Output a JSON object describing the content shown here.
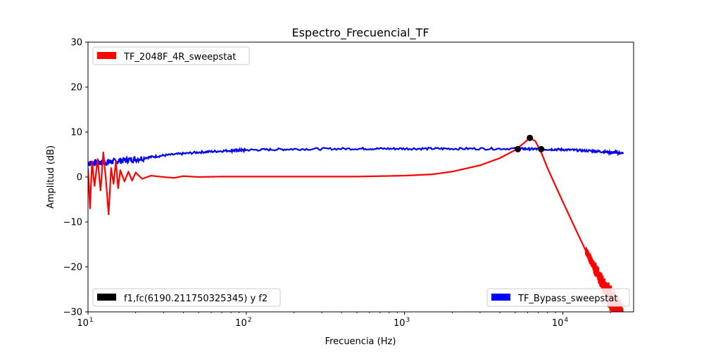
{
  "chart_data": {
    "type": "line",
    "title": "Espectro_Frecuencial_TF",
    "xlabel": "Frecuencia (Hz)",
    "ylabel": "Amplitud (dB)",
    "xscale": "log",
    "xlim": [
      10,
      28000
    ],
    "ylim": [
      -30,
      30
    ],
    "x_ticks": [
      {
        "value": 10,
        "base": "10",
        "exp": "1"
      },
      {
        "value": 100,
        "base": "10",
        "exp": "2"
      },
      {
        "value": 1000,
        "base": "10",
        "exp": "3"
      },
      {
        "value": 10000,
        "base": "10",
        "exp": "4"
      }
    ],
    "y_ticks": [
      {
        "value": -30,
        "label": "−30"
      },
      {
        "value": -20,
        "label": "−20"
      },
      {
        "value": -10,
        "label": "−10"
      },
      {
        "value": 0,
        "label": "0"
      },
      {
        "value": 10,
        "label": "10"
      },
      {
        "value": 20,
        "label": "20"
      },
      {
        "value": 30,
        "label": "30"
      }
    ],
    "grid": false,
    "series": [
      {
        "name": "TF_Bypass_sweepstat",
        "color": "#0000ff",
        "legend_position": "lower-right",
        "points": [
          [
            10,
            3.0
          ],
          [
            12,
            3.2
          ],
          [
            15,
            3.5
          ],
          [
            20,
            4.0
          ],
          [
            30,
            4.8
          ],
          [
            50,
            5.5
          ],
          [
            80,
            5.9
          ],
          [
            100,
            6.0
          ],
          [
            200,
            6.2
          ],
          [
            500,
            6.3
          ],
          [
            1000,
            6.3
          ],
          [
            2000,
            6.3
          ],
          [
            5000,
            6.3
          ],
          [
            7000,
            6.2
          ],
          [
            10000,
            6.1
          ],
          [
            15000,
            5.8
          ],
          [
            20000,
            5.5
          ],
          [
            24000,
            5.3
          ]
        ]
      },
      {
        "name": "TF_2048F_4R_sweepstat",
        "color": "#ff0000",
        "legend_position": "upper-left",
        "points": [
          [
            10,
            2.0
          ],
          [
            10.3,
            -7.0
          ],
          [
            10.6,
            3.5
          ],
          [
            11,
            -2.0
          ],
          [
            11.5,
            4.0
          ],
          [
            12,
            -3.0
          ],
          [
            12.5,
            5.5
          ],
          [
            13,
            -1.0
          ],
          [
            13.5,
            -8.3
          ],
          [
            14,
            2.0
          ],
          [
            14.5,
            -1.5
          ],
          [
            15,
            3.5
          ],
          [
            15.5,
            -2.5
          ],
          [
            16,
            1.5
          ],
          [
            17,
            -1.0
          ],
          [
            18,
            1.2
          ],
          [
            19,
            -0.8
          ],
          [
            20,
            1.0
          ],
          [
            22,
            -0.4
          ],
          [
            25,
            0.3
          ],
          [
            30,
            0.0
          ],
          [
            35,
            -0.2
          ],
          [
            40,
            0.2
          ],
          [
            50,
            0.0
          ],
          [
            70,
            0.1
          ],
          [
            100,
            0.1
          ],
          [
            200,
            0.1
          ],
          [
            500,
            0.1
          ],
          [
            1000,
            0.3
          ],
          [
            1500,
            0.6
          ],
          [
            2000,
            1.2
          ],
          [
            3000,
            2.6
          ],
          [
            4000,
            4.2
          ],
          [
            5000,
            6.0
          ],
          [
            5700,
            7.6
          ],
          [
            6190,
            8.7
          ],
          [
            6700,
            8.0
          ],
          [
            7300,
            5.5
          ],
          [
            8000,
            2.0
          ],
          [
            9000,
            -2.0
          ],
          [
            10000,
            -5.5
          ],
          [
            12000,
            -11.5
          ],
          [
            14000,
            -16.5
          ],
          [
            16000,
            -20.5
          ],
          [
            18000,
            -24.0
          ],
          [
            20000,
            -27.0
          ],
          [
            22000,
            -29.5
          ],
          [
            24000,
            -32.0
          ]
        ],
        "noise_band": [
          [
            14000,
            1.0
          ],
          [
            16000,
            1.5
          ],
          [
            18000,
            2.2
          ],
          [
            20000,
            3.0
          ],
          [
            22000,
            3.5
          ],
          [
            24000,
            3.5
          ]
        ]
      },
      {
        "name": "f1,fc(6190.211750325345) y f2",
        "color": "#000000",
        "legend_position": "lower-left",
        "markers": [
          [
            5200,
            6.2
          ],
          [
            6190.211750325345,
            8.7
          ],
          [
            7300,
            6.2
          ]
        ]
      }
    ]
  }
}
